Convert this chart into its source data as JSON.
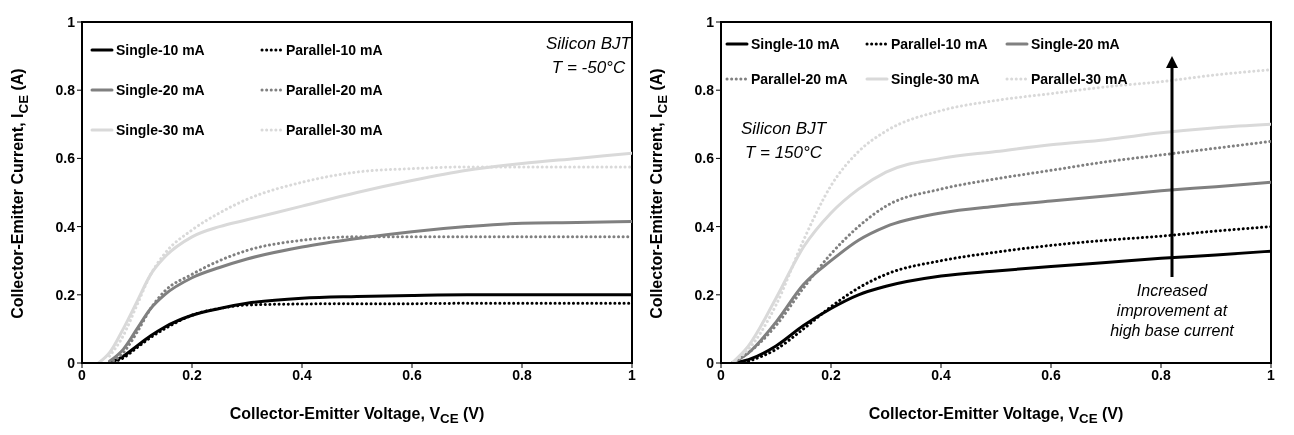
{
  "chart_data": [
    {
      "type": "line",
      "xlabel": "Collector-Emitter Voltage, V$_{CE}$ (V)",
      "ylabel": "Collector-Emitter Current, I$_{CE}$ (A)",
      "xlim": [
        0,
        1
      ],
      "xticks": [
        0,
        0.2,
        0.4,
        0.6,
        0.8,
        1
      ],
      "ylim": [
        0,
        1
      ],
      "yticks": [
        0,
        0.2,
        0.4,
        0.6,
        0.8,
        1
      ],
      "legend": "top left",
      "marker": "none",
      "annotations": [
        "Silicon BJT",
        "T = -50°C"
      ],
      "x": [
        0.03,
        0.05,
        0.075,
        0.1,
        0.125,
        0.15,
        0.2,
        0.25,
        0.3,
        0.4,
        0.5,
        0.6,
        0.7,
        0.8,
        0.9,
        1
      ],
      "series": [
        {
          "name": "Single-10 mA",
          "color": "#000000",
          "line_style": "solid",
          "values": [
            null,
            0,
            0.02,
            0.05,
            0.08,
            0.105,
            0.14,
            0.16,
            0.175,
            0.19,
            0.195,
            0.198,
            0.2,
            0.2,
            0.2,
            0.2
          ]
        },
        {
          "name": "Parallel-10 mA",
          "color": "#000000",
          "line_style": "dotted",
          "values": [
            null,
            0,
            0.015,
            0.045,
            0.075,
            0.1,
            0.14,
            0.16,
            0.17,
            0.173,
            0.174,
            0.174,
            0.175,
            0.175,
            0.175,
            0.175
          ]
        },
        {
          "name": "Single-20 mA",
          "color": "#808080",
          "line_style": "solid",
          "values": [
            null,
            0.005,
            0.04,
            0.1,
            0.16,
            0.2,
            0.25,
            0.28,
            0.305,
            0.34,
            0.365,
            0.385,
            0.4,
            0.41,
            0.412,
            0.415
          ]
        },
        {
          "name": "Parallel-20 mA",
          "color": "#808080",
          "line_style": "dotted",
          "values": [
            null,
            0,
            0.03,
            0.09,
            0.16,
            0.21,
            0.26,
            0.3,
            0.33,
            0.36,
            0.37,
            0.37,
            0.37,
            0.37,
            0.37,
            0.37
          ]
        },
        {
          "name": "Single-30 mA",
          "color": "#d9d9d9",
          "line_style": "solid",
          "values": [
            0,
            0.03,
            0.1,
            0.18,
            0.26,
            0.31,
            0.37,
            0.4,
            0.42,
            0.46,
            0.5,
            0.535,
            0.565,
            0.585,
            0.6,
            0.615
          ]
        },
        {
          "name": "Parallel-30 mA",
          "color": "#d9d9d9",
          "line_style": "dotted",
          "values": [
            null,
            0.02,
            0.08,
            0.17,
            0.26,
            0.32,
            0.39,
            0.44,
            0.48,
            0.53,
            0.56,
            0.57,
            0.575,
            0.575,
            0.575,
            0.575
          ]
        }
      ]
    },
    {
      "type": "line",
      "xlabel": "Collector-Emitter Voltage, V$_{CE}$ (V)",
      "ylabel": "Collector-Emitter Current, I$_{CE}$ (A)",
      "xlim": [
        0,
        1
      ],
      "xticks": [
        0,
        0.2,
        0.4,
        0.6,
        0.8,
        1
      ],
      "ylim": [
        0,
        1
      ],
      "yticks": [
        0,
        0.2,
        0.4,
        0.6,
        0.8,
        1
      ],
      "legend": "top",
      "marker": "none",
      "annotations": [
        "Silicon BJT",
        "T = 150°C",
        "Increased improvement at high base current"
      ],
      "x": [
        0.02,
        0.05,
        0.1,
        0.15,
        0.2,
        0.25,
        0.3,
        0.4,
        0.5,
        0.6,
        0.7,
        0.8,
        0.9,
        1
      ],
      "series": [
        {
          "name": "Single-10 mA",
          "color": "#000000",
          "line_style": "solid",
          "values": [
            0,
            0.01,
            0.05,
            0.11,
            0.16,
            0.2,
            0.225,
            0.255,
            0.27,
            0.283,
            0.295,
            0.307,
            0.317,
            0.328
          ]
        },
        {
          "name": "Parallel-10 mA",
          "color": "#000000",
          "line_style": "dotted",
          "values": [
            null,
            0.005,
            0.04,
            0.1,
            0.165,
            0.22,
            0.26,
            0.3,
            0.325,
            0.345,
            0.36,
            0.372,
            0.387,
            0.4
          ]
        },
        {
          "name": "Single-20 mA",
          "color": "#808080",
          "line_style": "solid",
          "values": [
            0,
            0.03,
            0.12,
            0.23,
            0.3,
            0.36,
            0.4,
            0.44,
            0.46,
            0.475,
            0.49,
            0.505,
            0.517,
            0.53
          ]
        },
        {
          "name": "Parallel-20 mA",
          "color": "#808080",
          "line_style": "dotted",
          "values": [
            0,
            0.03,
            0.11,
            0.22,
            0.32,
            0.4,
            0.46,
            0.51,
            0.54,
            0.565,
            0.59,
            0.61,
            0.63,
            0.65
          ]
        },
        {
          "name": "Single-30 mA",
          "color": "#d9d9d9",
          "line_style": "solid",
          "values": [
            0,
            0.05,
            0.19,
            0.34,
            0.44,
            0.51,
            0.56,
            0.6,
            0.62,
            0.64,
            0.655,
            0.675,
            0.69,
            0.7
          ]
        },
        {
          "name": "Parallel-30 mA",
          "color": "#d9d9d9",
          "line_style": "dotted",
          "values": [
            0,
            0.04,
            0.17,
            0.36,
            0.52,
            0.62,
            0.68,
            0.74,
            0.77,
            0.79,
            0.81,
            0.825,
            0.845,
            0.86
          ]
        }
      ]
    }
  ]
}
